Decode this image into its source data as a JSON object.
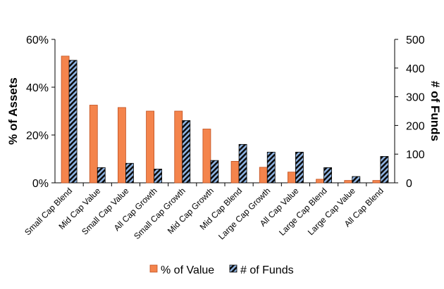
{
  "chart_data": {
    "type": "bar",
    "categories": [
      "Small Cap Blend",
      "Mid Cap Value",
      "Small Cap Value",
      "All Cap Growth",
      "Small Cap Growth",
      "Mid Cap Growth",
      "Mid Cap Blend",
      "Large Cap Growth",
      "All Cap Value",
      "Large Cap Blend",
      "Large Cap Value",
      "All Cap Blend"
    ],
    "series": [
      {
        "name": "% of Value",
        "axis": "left",
        "unit": "%",
        "color": "#f4844c",
        "values": [
          53,
          32.5,
          31.5,
          30,
          30,
          22.5,
          9,
          6.5,
          4.5,
          1.5,
          1,
          1
        ]
      },
      {
        "name": "# of Funds",
        "axis": "right",
        "unit": "count",
        "color": "#4c7bbf",
        "pattern": "diagonal-stripes",
        "values": [
          427,
          53,
          68,
          48,
          217,
          78,
          134,
          107,
          107,
          53,
          22,
          92
        ]
      }
    ],
    "ylabel": "% of Assets",
    "y2label": "# of Funds",
    "ylim": [
      0,
      60
    ],
    "y2lim": [
      0,
      500
    ],
    "yticks": [
      "0%",
      "20%",
      "40%",
      "60%"
    ],
    "y2ticks": [
      "0",
      "100",
      "200",
      "300",
      "400",
      "500"
    ],
    "legend_position": "bottom",
    "grid": false
  }
}
